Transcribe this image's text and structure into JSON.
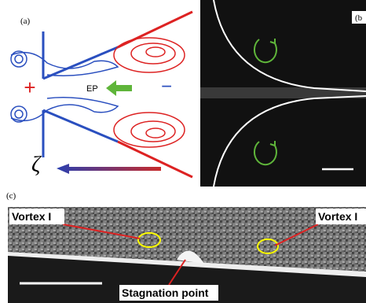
{
  "panel_a": {
    "label": "(a)",
    "ep": "EP",
    "plus": "+",
    "minus": "−",
    "zeta": "ζ"
  },
  "panel_b": {
    "label": "(b"
  },
  "panel_c": {
    "label": "(c)",
    "annotations": [
      "Vortex I",
      "Vortex I",
      "Stagnation point"
    ]
  }
}
